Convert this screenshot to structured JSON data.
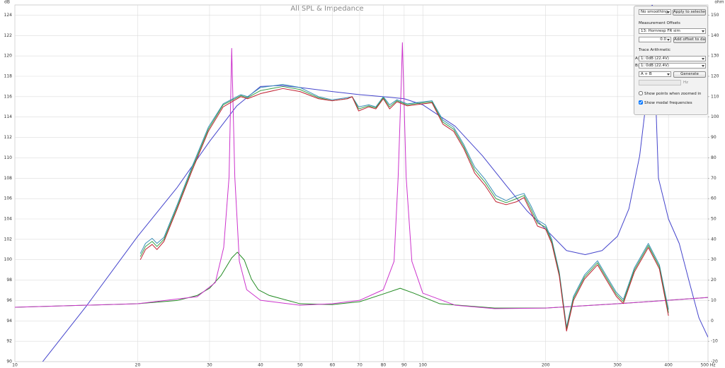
{
  "chart_data": {
    "type": "line",
    "title": "All SPL & Impedance",
    "ylabel": "dB",
    "y2label": "ohm",
    "xscale": "log",
    "grid": true,
    "xlim": [
      10,
      500
    ],
    "ylim": [
      90,
      125
    ],
    "y2lim": [
      -20,
      155
    ],
    "xticks": [
      10,
      20,
      30,
      40,
      50,
      60,
      70,
      80,
      90,
      100,
      200,
      300,
      400,
      {
        "value": 500,
        "label": "500 Hz"
      }
    ],
    "yticks": [
      90,
      92,
      94,
      96,
      98,
      100,
      102,
      104,
      106,
      108,
      110,
      112,
      114,
      116,
      118,
      120,
      122,
      124
    ],
    "y2ticks": [
      -20,
      -10,
      0,
      10,
      20,
      30,
      40,
      50,
      60,
      70,
      80,
      90,
      100,
      110,
      120,
      130,
      140,
      150
    ],
    "series": [
      {
        "color": "#4444cc",
        "x": [
          11.7,
          15,
          20,
          25,
          30,
          35,
          40,
          45,
          50,
          60,
          70,
          80,
          90,
          100,
          120,
          140,
          160,
          180,
          200,
          225,
          250,
          275,
          300,
          320,
          340,
          355,
          365,
          378,
          400,
          425,
          450,
          475,
          500
        ],
        "values": [
          90.0,
          95.5,
          102.3,
          107.1,
          111.6,
          115.1,
          117.0,
          117.1,
          116.9,
          116.5,
          116.2,
          116.0,
          115.8,
          115.2,
          113.1,
          110.2,
          107.3,
          104.8,
          103.0,
          100.9,
          100.5,
          100.9,
          102.3,
          105.0,
          110.2,
          116.5,
          125.5,
          108.0,
          104.0,
          101.6,
          97.8,
          94.3,
          92.4
        ]
      },
      {
        "color": "#228b22",
        "axis": "y2",
        "x": [
          10,
          20,
          25,
          28,
          30,
          32,
          34,
          35.1,
          36.5,
          38,
          39.5,
          42,
          50,
          60,
          70,
          80,
          88,
          95,
          110,
          150,
          200,
          300,
          500
        ],
        "values": [
          6.7,
          8.4,
          10,
          12.5,
          16,
          22.2,
          30.9,
          33.7,
          29.9,
          20.5,
          15.3,
          12.5,
          8.4,
          8,
          9.4,
          13.2,
          16,
          13.6,
          8.4,
          6.3,
          6.3,
          8.4,
          11.5
        ]
      },
      {
        "color": "#cc33cc",
        "axis": "y2",
        "x": [
          10,
          20,
          28,
          31,
          32.5,
          33.5,
          34,
          34.6,
          35.5,
          37,
          40,
          50,
          60,
          70,
          80,
          85,
          87,
          88.5,
          89.1,
          89.7,
          91,
          94,
          100,
          120,
          150,
          200,
          300,
          400,
          500
        ],
        "values": [
          6.7,
          8.4,
          11.9,
          18.8,
          36,
          70.7,
          133.7,
          70.7,
          29.2,
          15.3,
          10.1,
          7.7,
          8.4,
          10.1,
          15.3,
          29.2,
          70.7,
          115.7,
          136.5,
          115.7,
          70.7,
          29.2,
          13.6,
          7.7,
          6,
          6.3,
          8.4,
          10.1,
          11.5
        ]
      },
      {
        "color": "#3a8fb7",
        "x": [
          20.3,
          20.9,
          21.7,
          22.3,
          23.2,
          25.0,
          27.1,
          29.8,
          32.4,
          35.8,
          37.2,
          40,
          45.4,
          50,
          55.5,
          59.9,
          65.3,
          67.1,
          69.6,
          73.7,
          76.7,
          80,
          82.9,
          86.4,
          91.5,
          100,
          105.3,
          112,
          119,
          126,
          134,
          142,
          151,
          160,
          170,
          177,
          184,
          191,
          200,
          207,
          216,
          225,
          234,
          249,
          268,
          281,
          298,
          310,
          330,
          357,
          380,
          400
        ],
        "values": [
          100.6,
          101.6,
          102.1,
          101.6,
          102.2,
          105.4,
          109.0,
          113.0,
          115.3,
          116.2,
          116.0,
          116.9,
          117.2,
          116.9,
          116.0,
          115.7,
          115.9,
          116.0,
          115.0,
          115.2,
          115.0,
          116.0,
          115.2,
          115.7,
          115.3,
          115.5,
          115.6,
          113.7,
          113.0,
          111.3,
          109.1,
          107.9,
          106.3,
          105.8,
          106.3,
          106.5,
          105.3,
          103.9,
          103.4,
          102.0,
          98.8,
          93.4,
          96.4,
          98.5,
          99.9,
          98.5,
          96.8,
          96.1,
          99.2,
          101.6,
          99.5,
          95.1
        ]
      },
      {
        "color": "#3aa04a",
        "x": [
          20.3,
          20.9,
          21.7,
          22.3,
          23.2,
          25.0,
          27.1,
          29.8,
          32.4,
          35.8,
          37.2,
          40,
          45.4,
          50,
          55.5,
          59.9,
          65.3,
          67.1,
          69.6,
          73.7,
          76.7,
          80,
          82.9,
          86.4,
          91.5,
          100,
          105.3,
          112,
          119,
          126,
          134,
          142,
          151,
          160,
          170,
          177,
          184,
          191,
          200,
          207,
          216,
          225,
          234,
          249,
          268,
          281,
          298,
          310,
          330,
          357,
          380,
          400
        ],
        "values": [
          100.3,
          101.3,
          101.8,
          101.3,
          102.0,
          105.2,
          108.8,
          112.8,
          115.2,
          116.1,
          115.9,
          116.6,
          117.0,
          116.7,
          115.9,
          115.6,
          115.8,
          116.0,
          114.8,
          115.1,
          114.9,
          115.9,
          115.0,
          115.6,
          115.2,
          115.4,
          115.5,
          113.5,
          112.8,
          111.1,
          108.8,
          107.6,
          106.0,
          105.6,
          106.0,
          106.3,
          105.0,
          103.6,
          103.2,
          101.8,
          98.6,
          93.2,
          96.2,
          98.3,
          99.7,
          98.3,
          96.6,
          95.9,
          99.0,
          101.4,
          99.3,
          94.8
        ]
      },
      {
        "color": "#c02030",
        "x": [
          20.3,
          20.9,
          21.7,
          22.3,
          23.2,
          25.0,
          27.1,
          29.8,
          32.4,
          35.8,
          37.2,
          40,
          45.4,
          50,
          55.5,
          59.9,
          65.3,
          67.1,
          69.6,
          73.7,
          76.7,
          80,
          82.9,
          86.4,
          91.5,
          100,
          105.3,
          112,
          119,
          126,
          134,
          142,
          151,
          160,
          170,
          177,
          184,
          191,
          200,
          207,
          216,
          225,
          234,
          249,
          268,
          281,
          298,
          310,
          330,
          357,
          380,
          400
        ],
        "values": [
          100.0,
          101.0,
          101.5,
          101.0,
          101.8,
          105.0,
          108.6,
          112.6,
          115.0,
          116.0,
          115.8,
          116.3,
          116.8,
          116.5,
          115.8,
          115.6,
          115.8,
          116.0,
          114.6,
          115.0,
          114.8,
          115.8,
          114.8,
          115.5,
          115.1,
          115.3,
          115.4,
          113.3,
          112.6,
          110.9,
          108.5,
          107.3,
          105.7,
          105.4,
          105.7,
          106.1,
          104.7,
          103.3,
          103.0,
          101.6,
          98.4,
          93.0,
          96.0,
          98.1,
          99.5,
          98.1,
          96.4,
          95.7,
          98.8,
          101.2,
          99.1,
          94.5
        ]
      }
    ]
  },
  "panel": {
    "smoothing": "No smoothing",
    "apply": "Apply to selected",
    "offsets_title": "Measurement Offsets",
    "offset_measurement": "13: Hornresp FR sim",
    "offset_value": "0.0",
    "add_offset": "Add offset to data",
    "arithmetic_title": "Trace Arithmetic",
    "a_label": "A:",
    "a_trace": "1: 0dB (22.4V)",
    "b_label": "B:",
    "b_trace": "1: 0dB (22.4V)",
    "operation": "A + B",
    "generate": "Generate",
    "unit": "Hz",
    "checkboxes": [
      {
        "label": "Show points when zoomed in",
        "checked": false
      },
      {
        "label": "Show modal frequencies",
        "checked": true
      }
    ]
  }
}
